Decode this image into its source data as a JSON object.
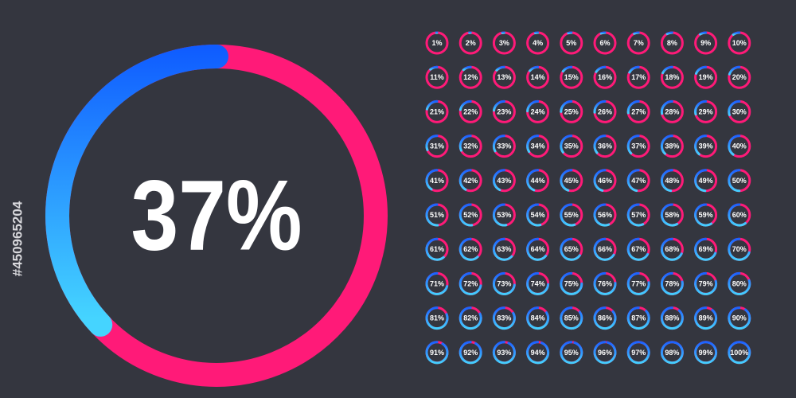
{
  "main": {
    "value": 37,
    "label": "37%"
  },
  "watermark": "#450965204",
  "rings": [
    {
      "value": 1,
      "label": "1%"
    },
    {
      "value": 2,
      "label": "2%"
    },
    {
      "value": 3,
      "label": "3%"
    },
    {
      "value": 4,
      "label": "4%"
    },
    {
      "value": 5,
      "label": "5%"
    },
    {
      "value": 6,
      "label": "6%"
    },
    {
      "value": 7,
      "label": "7%"
    },
    {
      "value": 8,
      "label": "8%"
    },
    {
      "value": 9,
      "label": "9%"
    },
    {
      "value": 10,
      "label": "10%"
    },
    {
      "value": 11,
      "label": "11%"
    },
    {
      "value": 12,
      "label": "12%"
    },
    {
      "value": 13,
      "label": "13%"
    },
    {
      "value": 14,
      "label": "14%"
    },
    {
      "value": 15,
      "label": "15%"
    },
    {
      "value": 16,
      "label": "16%"
    },
    {
      "value": 17,
      "label": "17%"
    },
    {
      "value": 18,
      "label": "18%"
    },
    {
      "value": 19,
      "label": "19%"
    },
    {
      "value": 20,
      "label": "20%"
    },
    {
      "value": 21,
      "label": "21%"
    },
    {
      "value": 22,
      "label": "22%"
    },
    {
      "value": 23,
      "label": "23%"
    },
    {
      "value": 24,
      "label": "24%"
    },
    {
      "value": 25,
      "label": "25%"
    },
    {
      "value": 26,
      "label": "26%"
    },
    {
      "value": 27,
      "label": "27%"
    },
    {
      "value": 28,
      "label": "28%"
    },
    {
      "value": 29,
      "label": "29%"
    },
    {
      "value": 30,
      "label": "30%"
    },
    {
      "value": 31,
      "label": "31%"
    },
    {
      "value": 32,
      "label": "32%"
    },
    {
      "value": 33,
      "label": "33%"
    },
    {
      "value": 34,
      "label": "34%"
    },
    {
      "value": 35,
      "label": "35%"
    },
    {
      "value": 36,
      "label": "36%"
    },
    {
      "value": 37,
      "label": "37%"
    },
    {
      "value": 38,
      "label": "38%"
    },
    {
      "value": 39,
      "label": "39%"
    },
    {
      "value": 40,
      "label": "40%"
    },
    {
      "value": 41,
      "label": "41%"
    },
    {
      "value": 42,
      "label": "42%"
    },
    {
      "value": 43,
      "label": "43%"
    },
    {
      "value": 44,
      "label": "44%"
    },
    {
      "value": 45,
      "label": "45%"
    },
    {
      "value": 46,
      "label": "46%"
    },
    {
      "value": 47,
      "label": "47%"
    },
    {
      "value": 48,
      "label": "48%"
    },
    {
      "value": 49,
      "label": "49%"
    },
    {
      "value": 50,
      "label": "50%"
    },
    {
      "value": 51,
      "label": "51%"
    },
    {
      "value": 52,
      "label": "52%"
    },
    {
      "value": 53,
      "label": "53%"
    },
    {
      "value": 54,
      "label": "54%"
    },
    {
      "value": 55,
      "label": "55%"
    },
    {
      "value": 56,
      "label": "56%"
    },
    {
      "value": 57,
      "label": "57%"
    },
    {
      "value": 58,
      "label": "58%"
    },
    {
      "value": 59,
      "label": "59%"
    },
    {
      "value": 60,
      "label": "60%"
    },
    {
      "value": 61,
      "label": "61%"
    },
    {
      "value": 62,
      "label": "62%"
    },
    {
      "value": 63,
      "label": "63%"
    },
    {
      "value": 64,
      "label": "64%"
    },
    {
      "value": 65,
      "label": "65%"
    },
    {
      "value": 66,
      "label": "66%"
    },
    {
      "value": 67,
      "label": "67%"
    },
    {
      "value": 68,
      "label": "68%"
    },
    {
      "value": 69,
      "label": "69%"
    },
    {
      "value": 70,
      "label": "70%"
    },
    {
      "value": 71,
      "label": "71%"
    },
    {
      "value": 72,
      "label": "72%"
    },
    {
      "value": 73,
      "label": "73%"
    },
    {
      "value": 74,
      "label": "74%"
    },
    {
      "value": 75,
      "label": "75%"
    },
    {
      "value": 76,
      "label": "76%"
    },
    {
      "value": 77,
      "label": "77%"
    },
    {
      "value": 78,
      "label": "78%"
    },
    {
      "value": 79,
      "label": "79%"
    },
    {
      "value": 80,
      "label": "80%"
    },
    {
      "value": 81,
      "label": "81%"
    },
    {
      "value": 82,
      "label": "82%"
    },
    {
      "value": 83,
      "label": "83%"
    },
    {
      "value": 84,
      "label": "84%"
    },
    {
      "value": 85,
      "label": "85%"
    },
    {
      "value": 86,
      "label": "86%"
    },
    {
      "value": 87,
      "label": "87%"
    },
    {
      "value": 88,
      "label": "88%"
    },
    {
      "value": 89,
      "label": "89%"
    },
    {
      "value": 90,
      "label": "90%"
    },
    {
      "value": 91,
      "label": "91%"
    },
    {
      "value": 92,
      "label": "92%"
    },
    {
      "value": 93,
      "label": "93%"
    },
    {
      "value": 94,
      "label": "94%"
    },
    {
      "value": 95,
      "label": "95%"
    },
    {
      "value": 96,
      "label": "96%"
    },
    {
      "value": 97,
      "label": "97%"
    },
    {
      "value": 98,
      "label": "98%"
    },
    {
      "value": 99,
      "label": "99%"
    },
    {
      "value": 100,
      "label": "100%"
    }
  ]
}
